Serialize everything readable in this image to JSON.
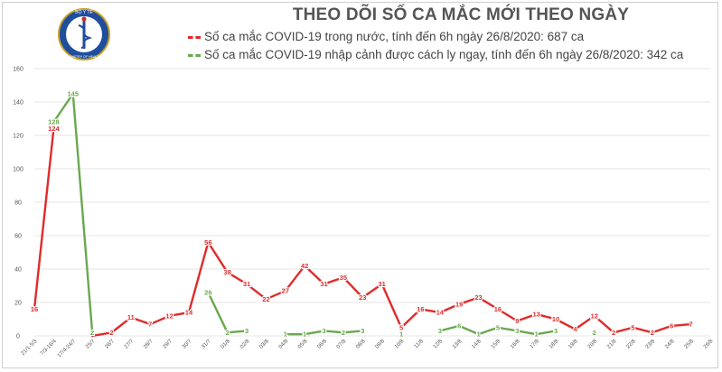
{
  "title": "THEO DÕI SỐ CA MẮC MỚI THEO NGÀY",
  "logo": {
    "top_text": "BỘ Y TẾ",
    "bottom_text": "MINISTRY OF HEALTH"
  },
  "colors": {
    "domestic": "#e02b2b",
    "imported": "#6aa84f",
    "grid": "#e4e4e4",
    "title": "#555555"
  },
  "chart_data": {
    "type": "line",
    "title": "THEO DÕI SỐ CA MẮC MỚI THEO NGÀY",
    "xlabel": "",
    "ylabel": "",
    "ylim": [
      0,
      160
    ],
    "yticks": [
      0,
      20,
      40,
      60,
      80,
      100,
      120,
      140,
      160
    ],
    "grid": true,
    "legend_position": "top",
    "categories": [
      "21/1-5/3",
      "7/3-16/4",
      "17/4-24/7",
      "25/7",
      "26/7",
      "27/7",
      "28/7",
      "29/7",
      "30/7",
      "31/7",
      "01/8",
      "02/8",
      "03/8",
      "04/8",
      "05/8",
      "06/8",
      "07/8",
      "08/8",
      "09/8",
      "10/8",
      "11/8",
      "12/8",
      "13/8",
      "14/8",
      "15/8",
      "16/8",
      "17/8",
      "18/8",
      "19/8",
      "20/8",
      "21/8",
      "22/8",
      "23/8",
      "24/8",
      "25/8",
      "26/8"
    ],
    "series": [
      {
        "name": "Số ca mắc COVID-19 trong nước, tính đến 6h ngày 26/8/2020: 687 ca",
        "color": "#e02b2b",
        "values": [
          16,
          124,
          null,
          0,
          2,
          11,
          7,
          12,
          14,
          56,
          38,
          31,
          22,
          27,
          42,
          31,
          35,
          23,
          31,
          5,
          16,
          14,
          19,
          23,
          16,
          9,
          13,
          10,
          4,
          12,
          2,
          5,
          2,
          6,
          7,
          null
        ],
        "labels": [
          "16",
          "124",
          "",
          "",
          "2",
          "11",
          "7",
          "12",
          "14",
          "56",
          "38",
          "31",
          "22",
          "27",
          "42",
          "31",
          "35",
          "23",
          "31",
          "5",
          "16",
          "14",
          "19",
          "23",
          "16",
          "9",
          "13",
          "10",
          "4",
          "12",
          "2",
          "5",
          "2",
          "6",
          "7",
          ""
        ]
      },
      {
        "name": "Số ca mắc COVID-19 nhập cảnh được cách ly ngay, tính đến 6h ngày 26/8/2020: 342 ca",
        "color": "#6aa84f",
        "values": [
          null,
          128,
          145,
          2,
          null,
          null,
          null,
          null,
          null,
          26,
          2,
          3,
          null,
          1,
          1,
          3,
          2,
          3,
          null,
          1,
          null,
          3,
          6,
          1,
          5,
          3,
          1,
          3,
          null,
          2,
          null,
          null,
          null,
          null,
          null,
          null
        ],
        "labels": [
          "",
          "128",
          "145",
          "2",
          "",
          "",
          "",
          "",
          "",
          "26",
          "2",
          "3",
          "",
          "1",
          "1",
          "3",
          "2",
          "3",
          "",
          "1",
          "",
          "3",
          "6",
          "1",
          "5",
          "3",
          "1",
          "3",
          "",
          "2",
          "",
          "",
          "",
          "",
          "",
          ""
        ]
      }
    ]
  }
}
